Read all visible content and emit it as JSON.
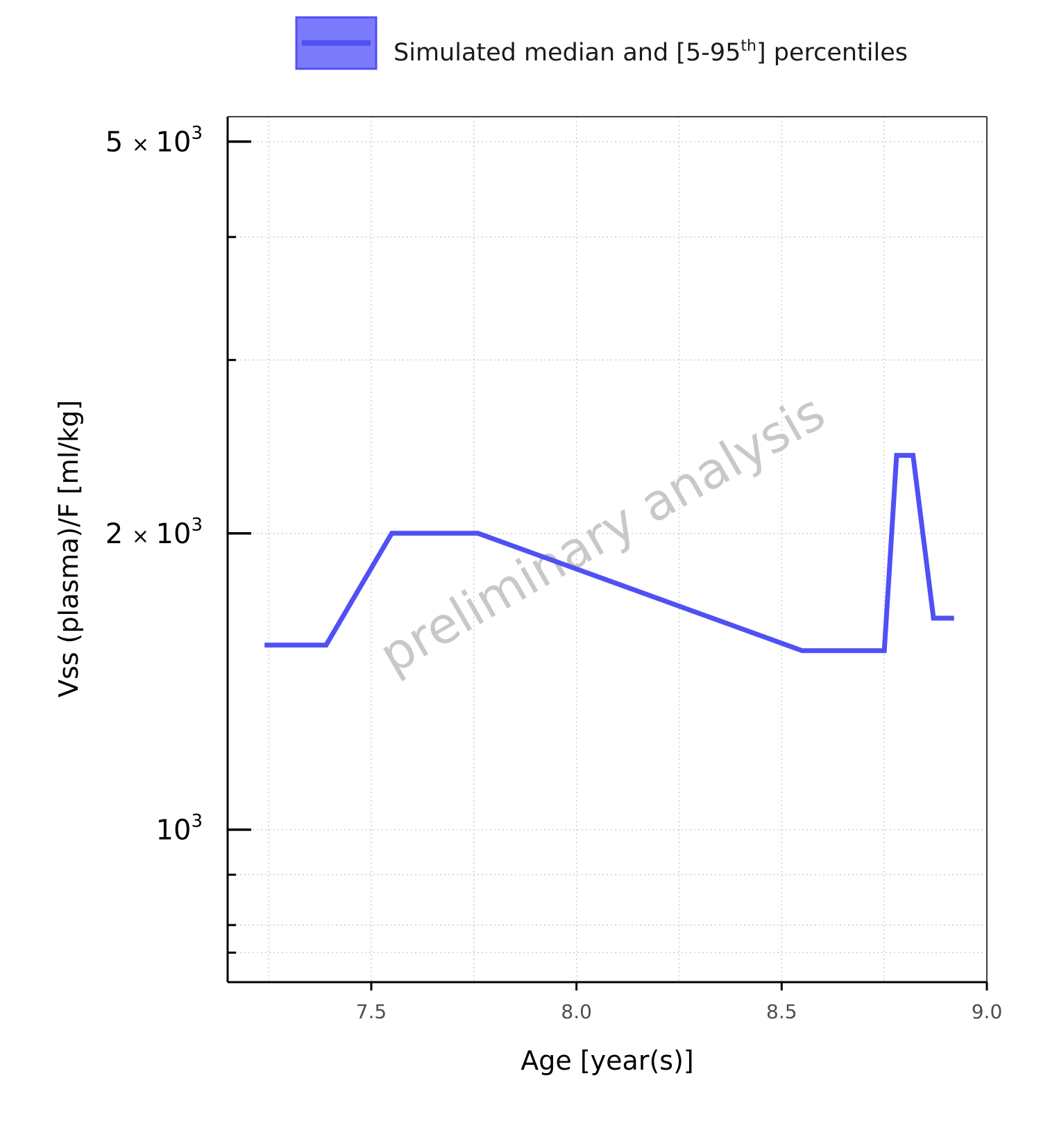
{
  "legend": {
    "label_prefix": "Simulated median and [5-95",
    "label_sup": "th",
    "label_suffix": "] percentiles",
    "line_color": "#5050f5",
    "fill_color": "#7b7bfb"
  },
  "watermark": "preliminary analysis",
  "axes": {
    "xlabel": "Age [year(s)]",
    "ylabel": "Vss (plasma)/F [ml/kg]",
    "x_ticks": [
      "7.5",
      "8.0",
      "8.5",
      "9.0"
    ],
    "y_tick_labels": [
      {
        "mantissa": "5",
        "times": "×",
        "base": "10",
        "exp": "3",
        "value": 5000
      },
      {
        "mantissa": "2",
        "times": "×",
        "base": "10",
        "exp": "3",
        "value": 2000
      },
      {
        "mantissa": "",
        "times": "",
        "base": "10",
        "exp": "3",
        "value": 1000
      }
    ]
  },
  "chart_data": {
    "type": "line",
    "title": "",
    "xlabel": "Age [year(s)]",
    "ylabel": "Vss (plasma)/F [ml/kg]",
    "y_scale": "log",
    "xlim": [
      7.15,
      9.0
    ],
    "ylim": [
      700,
      5300
    ],
    "grid": true,
    "legend_position": "top",
    "y_major_ticks": [
      1000,
      2000,
      5000
    ],
    "y_minor_ticks": [
      750,
      800,
      900,
      3000,
      4000
    ],
    "series": [
      {
        "name": "Simulated median and [5-95th] percentiles",
        "color": "#5050f5",
        "x": [
          7.24,
          7.39,
          7.55,
          7.76,
          8.55,
          8.75,
          8.78,
          8.82,
          8.87,
          8.92
        ],
        "y": [
          1540,
          1540,
          2000,
          2000,
          1520,
          1520,
          2400,
          2400,
          1640,
          1640
        ]
      }
    ]
  }
}
